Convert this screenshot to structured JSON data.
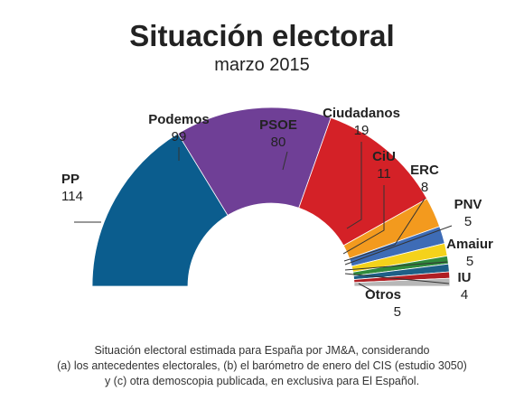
{
  "title": "Situación electoral",
  "subtitle": "marzo 2015",
  "footnote": {
    "line1": "Situación electoral estimada para España por JM&A, considerando",
    "line2": "(a) los antecedentes electorales, (b) el barómetro de enero del CIS (estudio 3050)",
    "line3": "y (c) otra demoscopia publicada, en exclusiva para El Español."
  },
  "chart_data": {
    "type": "pie",
    "shape": "half-donut (parliament hemicycle)",
    "total_seats": 350,
    "slices": [
      {
        "name": "PP",
        "value": 114,
        "color": "#0b5d8e"
      },
      {
        "name": "Podemos",
        "value": 99,
        "color": "#6f3f96"
      },
      {
        "name": "PSOE",
        "value": 80,
        "color": "#d42127"
      },
      {
        "name": "Ciudadanos",
        "value": 19,
        "color": "#f39a1e"
      },
      {
        "name": "CiU",
        "value": 11,
        "color": "#3e6cb6"
      },
      {
        "name": "ERC",
        "value": 8,
        "color": "#f4d21b"
      },
      {
        "name": "PNV",
        "value": 5,
        "color": "#2f8a3c"
      },
      {
        "name": "Amaiur",
        "value": 5,
        "color": "#1d5f86"
      },
      {
        "name": "IU",
        "value": 4,
        "color": "#b01e23"
      },
      {
        "name": "Otros",
        "value": 5,
        "color": "#b7b7b7"
      }
    ]
  }
}
